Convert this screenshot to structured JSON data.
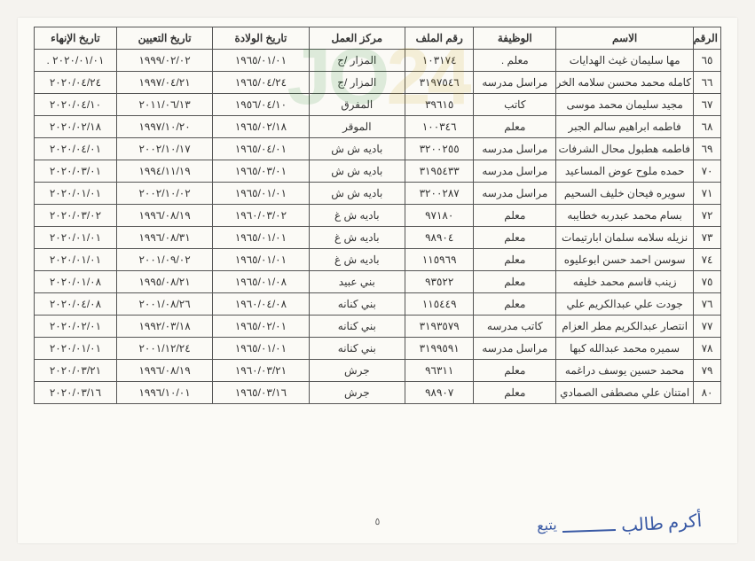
{
  "watermark": {
    "part1": "JO",
    "part2": "24"
  },
  "page_number": "٥",
  "signature": {
    "text": "أكرم طالب",
    "follow": "يتبع"
  },
  "columns": [
    {
      "key": "no",
      "label": "الرقم"
    },
    {
      "key": "name",
      "label": "الاسم"
    },
    {
      "key": "job",
      "label": "الوظيفة"
    },
    {
      "key": "file",
      "label": "رقم الملف"
    },
    {
      "key": "center",
      "label": "مركز العمل"
    },
    {
      "key": "dob",
      "label": "تاريخ الولادة"
    },
    {
      "key": "hire",
      "label": "تاريخ التعيين"
    },
    {
      "key": "end",
      "label": "تاريخ الإنهاء"
    }
  ],
  "rows": [
    {
      "no": "٦٥",
      "name": "مها سليمان غيث الهدايات",
      "job": "معلم .",
      "file": "١٠٣١٧٤",
      "center": "المزار /ج",
      "dob": "١٩٦٥/٠١/٠١",
      "hire": "١٩٩٩/٠٢/٠٢",
      "end": "٢٠٢٠/٠١/٠١ ."
    },
    {
      "no": "٦٦",
      "name": "كامله محمد محسن سلامه الخرشه",
      "job": "مراسل مدرسه",
      "file": "٣١٩٧٥٤٦",
      "center": "المزار /ج",
      "dob": "١٩٦٥/٠٤/٢٤",
      "hire": "١٩٩٧/٠٤/٢١",
      "end": "٢٠٢٠/٠٤/٢٤"
    },
    {
      "no": "٦٧",
      "name": "مجيد سليمان محمد موسى",
      "job": "كاتب",
      "file": "٣٩٦١٥",
      "center": "المفرق",
      "dob": "١٩٥٦/٠٤/١٠",
      "hire": "٢٠١١/٠٦/١٣",
      "end": "٢٠٢٠/٠٤/١٠"
    },
    {
      "no": "٦٨",
      "name": "فاطمه ابراهيم سالم الجبر",
      "job": "معلم",
      "file": "١٠٠٣٤٦",
      "center": "الموقر",
      "dob": "١٩٦٥/٠٢/١٨",
      "hire": "١٩٩٧/١٠/٢٠",
      "end": "٢٠٢٠/٠٢/١٨"
    },
    {
      "no": "٦٩",
      "name": "فاطمه هطبول محال الشرفات",
      "job": "مراسل مدرسه",
      "file": "٣٢٠٠٢٥٥",
      "center": "باديه ش ش",
      "dob": "١٩٦٥/٠٤/٠١",
      "hire": "٢٠٠٢/١٠/١٧",
      "end": "٢٠٢٠/٠٤/٠١"
    },
    {
      "no": "٧٠",
      "name": "حمده ملوح عوض المساعيد",
      "job": "مراسل مدرسه",
      "file": "٣١٩٥٤٣٣",
      "center": "باديه ش ش",
      "dob": "١٩٦٥/٠٣/٠١",
      "hire": "١٩٩٤/١١/١٩",
      "end": "٢٠٢٠/٠٣/٠١"
    },
    {
      "no": "٧١",
      "name": "سويره فيحان خليف السحيم",
      "job": "مراسل مدرسه",
      "file": "٣٢٠٠٢٨٧",
      "center": "باديه ش ش",
      "dob": "١٩٦٥/٠١/٠١",
      "hire": "٢٠٠٢/١٠/٠٢",
      "end": "٢٠٢٠/٠١/٠١"
    },
    {
      "no": "٧٢",
      "name": "بسام محمد عبدربه خطايبه",
      "job": "معلم",
      "file": "٩٧١٨٠",
      "center": "باديه ش غ",
      "dob": "١٩٦٠/٠٣/٠٢",
      "hire": "١٩٩٦/٠٨/١٩",
      "end": "٢٠٢٠/٠٣/٠٢"
    },
    {
      "no": "٧٣",
      "name": "نزيله سلامه سلمان ابارتيمات",
      "job": "معلم",
      "file": "٩٨٩٠٤",
      "center": "باديه ش غ",
      "dob": "١٩٦٥/٠١/٠١",
      "hire": "١٩٩٦/٠٨/٣١",
      "end": "٢٠٢٠/٠١/٠١"
    },
    {
      "no": "٧٤",
      "name": "سوسن احمد حسن ابوعليوه",
      "job": "معلم",
      "file": "١١٥٩٦٩",
      "center": "باديه ش غ",
      "dob": "١٩٦٥/٠١/٠١",
      "hire": "٢٠٠١/٠٩/٠٢",
      "end": "٢٠٢٠/٠١/٠١"
    },
    {
      "no": "٧٥",
      "name": "زينب قاسم محمد خليفه",
      "job": "معلم",
      "file": "٩٣٥٢٢",
      "center": "بني عبيد",
      "dob": "١٩٦٥/٠١/٠٨",
      "hire": "١٩٩٥/٠٨/٢١",
      "end": "٢٠٢٠/٠١/٠٨"
    },
    {
      "no": "٧٦",
      "name": "جودت علي عبدالكريم علي",
      "job": "معلم",
      "file": "١١٥٤٤٩",
      "center": "بني كنانه",
      "dob": "١٩٦٠/٠٤/٠٨",
      "hire": "٢٠٠١/٠٨/٢٦",
      "end": "٢٠٢٠/٠٤/٠٨"
    },
    {
      "no": "٧٧",
      "name": "انتصار عبدالكريم مطر العزام",
      "job": "كاتب مدرسه",
      "file": "٣١٩٣٥٧٩",
      "center": "بني كنانه",
      "dob": "١٩٦٥/٠٢/٠١",
      "hire": "١٩٩٢/٠٣/١٨",
      "end": "٢٠٢٠/٠٢/٠١"
    },
    {
      "no": "٧٨",
      "name": "سميره محمد عبدالله كبها",
      "job": "مراسل مدرسه",
      "file": "٣١٩٩٥٩١",
      "center": "بني كنانه",
      "dob": "١٩٦٥/٠١/٠١",
      "hire": "٢٠٠١/١٢/٢٤",
      "end": "٢٠٢٠/٠١/٠١"
    },
    {
      "no": "٧٩",
      "name": "محمد حسين يوسف دراغمه",
      "job": "معلم",
      "file": "٩٦٣١١",
      "center": "جرش",
      "dob": "١٩٦٠/٠٣/٢١",
      "hire": "١٩٩٦/٠٨/١٩",
      "end": "٢٠٢٠/٠٣/٢١"
    },
    {
      "no": "٨٠",
      "name": "امتنان علي مصطفى الصمادي",
      "job": "معلم",
      "file": "٩٨٩٠٧",
      "center": "جرش",
      "dob": "١٩٦٥/٠٣/١٦",
      "hire": "١٩٩٦/١٠/٠١",
      "end": "٢٠٢٠/٠٣/١٦"
    }
  ]
}
